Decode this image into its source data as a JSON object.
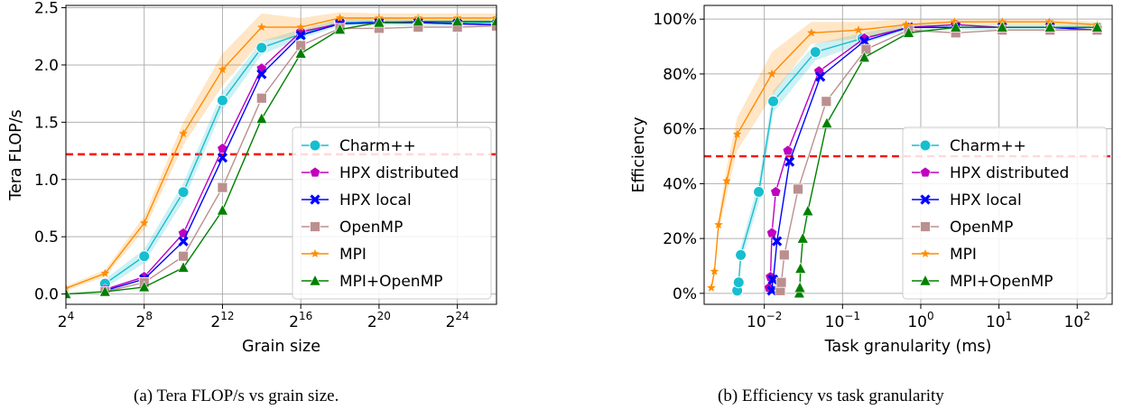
{
  "captions": {
    "a": "(a) Tera FLOP/s vs grain size.",
    "b": "(b) Efficiency vs task granularity"
  },
  "chart_data": [
    {
      "type": "line",
      "xlabel": "Grain size",
      "ylabel": "Tera FLOP/s",
      "xscale": "log2",
      "xlim": [
        16,
        67108864
      ],
      "ylim": [
        -0.09,
        2.52
      ],
      "x_ticks": [
        {
          "value": 16,
          "base": "2",
          "exp": "4"
        },
        {
          "value": 256,
          "base": "2",
          "exp": "8"
        },
        {
          "value": 4096,
          "base": "2",
          "exp": "12"
        },
        {
          "value": 65536,
          "base": "2",
          "exp": "16"
        },
        {
          "value": 1048576,
          "base": "2",
          "exp": "20"
        },
        {
          "value": 16777216,
          "base": "2",
          "exp": "24"
        }
      ],
      "y_ticks": [
        {
          "value": 0.0,
          "label": "0.0"
        },
        {
          "value": 0.5,
          "label": "0.5"
        },
        {
          "value": 1.0,
          "label": "1.0"
        },
        {
          "value": 1.5,
          "label": "1.5"
        },
        {
          "value": 2.0,
          "label": "2.0"
        },
        {
          "value": 2.5,
          "label": "2.5"
        }
      ],
      "grid": true,
      "legend_position": "lower-right",
      "reference_line": {
        "y": 1.22,
        "color": "#ff0000",
        "style": "dashed"
      },
      "series": [
        {
          "name": "Charm++",
          "color": "#17becf",
          "marker": "circle",
          "x": [
            64,
            256,
            1024,
            4096,
            16384,
            65536,
            262144,
            1048576,
            4194304,
            16777216,
            67108864
          ],
          "y": [
            0.09,
            0.33,
            0.89,
            1.69,
            2.15,
            2.27,
            2.37,
            2.38,
            2.37,
            2.37,
            2.37
          ],
          "band": [
            0.04,
            0.06,
            0.08,
            0.08,
            0.06,
            0.04,
            0.03,
            0.03,
            0.03,
            0.03,
            0.03
          ]
        },
        {
          "name": "HPX distributed",
          "color": "#bf00bf",
          "marker": "pentagon",
          "x": [
            64,
            256,
            1024,
            4096,
            16384,
            65536,
            262144,
            1048576,
            4194304,
            16777216,
            67108864
          ],
          "y": [
            0.04,
            0.15,
            0.53,
            1.27,
            1.97,
            2.29,
            2.36,
            2.37,
            2.37,
            2.36,
            2.35
          ]
        },
        {
          "name": "HPX local",
          "color": "#0000ff",
          "marker": "x",
          "x": [
            64,
            256,
            1024,
            4096,
            16384,
            65536,
            262144,
            1048576,
            4194304,
            16777216,
            67108864
          ],
          "y": [
            0.03,
            0.13,
            0.46,
            1.19,
            1.92,
            2.26,
            2.36,
            2.37,
            2.37,
            2.36,
            2.35
          ]
        },
        {
          "name": "OpenMP",
          "color": "#bc8f8f",
          "marker": "square",
          "x": [
            64,
            256,
            1024,
            4096,
            16384,
            65536,
            262144,
            1048576,
            4194304,
            16777216,
            67108864
          ],
          "y": [
            0.02,
            0.1,
            0.33,
            0.93,
            1.71,
            2.17,
            2.32,
            2.32,
            2.33,
            2.33,
            2.34
          ]
        },
        {
          "name": "MPI",
          "color": "#ff8c00",
          "marker": "star",
          "x": [
            16,
            64,
            256,
            1024,
            4096,
            16384,
            65536,
            262144,
            1048576,
            4194304,
            16777216,
            67108864
          ],
          "y": [
            0.05,
            0.18,
            0.62,
            1.4,
            1.96,
            2.33,
            2.33,
            2.41,
            2.41,
            2.41,
            2.41,
            2.41
          ],
          "band": [
            0.02,
            0.03,
            0.06,
            0.1,
            0.14,
            0.12,
            0.08,
            0.05,
            0.04,
            0.04,
            0.04,
            0.04
          ]
        },
        {
          "name": "MPI+OpenMP",
          "color": "#008000",
          "marker": "triangle",
          "x": [
            16,
            64,
            256,
            1024,
            4096,
            16384,
            65536,
            262144,
            1048576,
            4194304,
            16777216,
            67108864
          ],
          "y": [
            0.0,
            0.02,
            0.06,
            0.23,
            0.73,
            1.53,
            2.1,
            2.31,
            2.37,
            2.38,
            2.38,
            2.38
          ]
        }
      ]
    },
    {
      "type": "line",
      "xlabel": "Task granularity (ms)",
      "ylabel": "Efficiency",
      "xscale": "log10",
      "xlim": [
        0.0017,
        280
      ],
      "ylim": [
        -4,
        105
      ],
      "x_ticks": [
        {
          "value": 0.01,
          "base": "10",
          "exp": "−2"
        },
        {
          "value": 0.1,
          "base": "10",
          "exp": "−1"
        },
        {
          "value": 1,
          "base": "10",
          "exp": "0"
        },
        {
          "value": 10,
          "base": "10",
          "exp": "1"
        },
        {
          "value": 100,
          "base": "10",
          "exp": "2"
        }
      ],
      "y_ticks": [
        {
          "value": 0,
          "label": "0%"
        },
        {
          "value": 20,
          "label": "20%"
        },
        {
          "value": 40,
          "label": "40%"
        },
        {
          "value": 60,
          "label": "60%"
        },
        {
          "value": 80,
          "label": "80%"
        },
        {
          "value": 100,
          "label": "100%"
        }
      ],
      "grid": true,
      "legend_position": "lower-right",
      "reference_line": {
        "y": 50,
        "color": "#ff0000",
        "style": "dashed"
      },
      "series": [
        {
          "name": "Charm++",
          "color": "#17becf",
          "marker": "circle",
          "x": [
            0.0045,
            0.0047,
            0.005,
            0.0085,
            0.013,
            0.045,
            0.18,
            0.7,
            2.8,
            11,
            45,
            180
          ],
          "y": [
            1,
            4,
            14,
            37,
            70,
            88,
            93,
            97,
            97,
            97,
            97,
            97
          ],
          "band": [
            1,
            2,
            3,
            4,
            4,
            3,
            2,
            1,
            1,
            1,
            1,
            1
          ]
        },
        {
          "name": "HPX distributed",
          "color": "#bf00bf",
          "marker": "pentagon",
          "x": [
            0.0115,
            0.012,
            0.0125,
            0.014,
            0.02,
            0.05,
            0.19,
            0.7,
            2.8,
            11,
            45,
            180
          ],
          "y": [
            2,
            6,
            22,
            37,
            52,
            81,
            93,
            97,
            98,
            97,
            97,
            96
          ]
        },
        {
          "name": "HPX local",
          "color": "#0000ff",
          "marker": "x",
          "x": [
            0.0125,
            0.0128,
            0.013,
            0.0145,
            0.021,
            0.052,
            0.19,
            0.7,
            2.8,
            11,
            45,
            180
          ],
          "y": [
            1,
            5,
            5,
            19,
            48,
            79,
            92,
            97,
            97,
            97,
            97,
            96
          ]
        },
        {
          "name": "OpenMP",
          "color": "#bc8f8f",
          "marker": "square",
          "x": [
            0.016,
            0.0165,
            0.018,
            0.027,
            0.062,
            0.2,
            0.7,
            2.8,
            11,
            45,
            180
          ],
          "y": [
            1,
            4,
            14,
            38,
            70,
            89,
            96,
            95,
            96,
            96,
            96
          ]
        },
        {
          "name": "MPI",
          "color": "#ff8c00",
          "marker": "star",
          "x": [
            0.0021,
            0.0023,
            0.0026,
            0.0033,
            0.0045,
            0.0125,
            0.04,
            0.16,
            0.65,
            2.7,
            11,
            44,
            180
          ],
          "y": [
            2,
            8,
            25,
            41,
            58,
            80,
            95,
            96,
            98,
            99,
            99,
            99,
            98
          ],
          "band": [
            1,
            2,
            3,
            5,
            6,
            8,
            4,
            3,
            2,
            1,
            1,
            1,
            1
          ]
        },
        {
          "name": "MPI+OpenMP",
          "color": "#008000",
          "marker": "triangle",
          "x": [
            0.028,
            0.0285,
            0.029,
            0.031,
            0.036,
            0.063,
            0.19,
            0.7,
            2.8,
            11,
            45,
            180
          ],
          "y": [
            0,
            2,
            9,
            20,
            30,
            62,
            86,
            95,
            97,
            97,
            97,
            97
          ]
        }
      ]
    }
  ]
}
